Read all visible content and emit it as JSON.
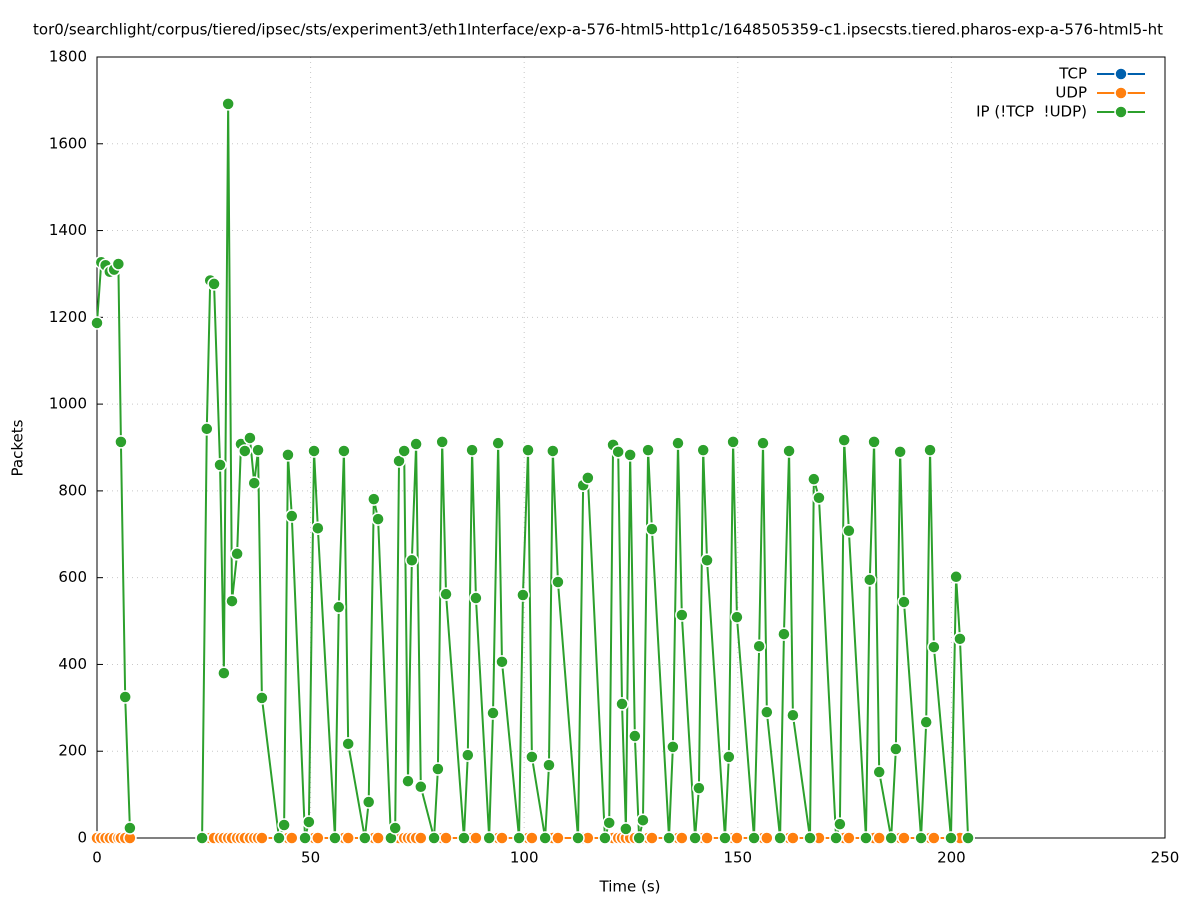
{
  "chart_data": {
    "type": "line",
    "title": "tor0/searchlight/corpus/tiered/ipsec/sts/experiment3/eth1Interface/exp-a-576-html5-http1c/1648505359-c1.ipsecsts.tiered.pharos-exp-a-576-html5-ht",
    "x_label": "Time (s)",
    "y_label": "Packets",
    "xlim": [
      0,
      250
    ],
    "xticks": [
      0,
      50,
      100,
      150,
      200,
      250
    ],
    "ylim": [
      0,
      1800
    ],
    "yticks": [
      0,
      200,
      400,
      600,
      800,
      1000,
      1200,
      1400,
      1600,
      1800
    ],
    "grid": true,
    "legend": "top-right",
    "x": [
      0,
      1,
      2,
      3,
      4,
      5,
      5.6,
      6.6,
      7.7,
      16,
      24.6,
      25.7,
      26.5,
      27.4,
      28.8,
      29.7,
      30.7,
      31.6,
      32.8,
      33.7,
      34.6,
      35.8,
      36.8,
      37.7,
      38.6,
      42.6,
      43.8,
      44.7,
      45.6,
      48.7,
      49.6,
      50.8,
      51.7,
      55.7,
      56.6,
      57.8,
      58.8,
      62.7,
      63.6,
      64.8,
      65.8,
      68.8,
      69.8,
      70.7,
      71.9,
      72.8,
      73.7,
      74.7,
      75.8,
      78.9,
      79.8,
      80.8,
      81.7,
      85.9,
      86.8,
      87.8,
      88.7,
      91.8,
      92.7,
      93.9,
      94.8,
      98.8,
      99.7,
      100.9,
      101.8,
      104.9,
      105.8,
      106.7,
      107.9,
      112.6,
      113.8,
      114.9,
      118.9,
      119.9,
      120.8,
      122.0,
      122.9,
      123.8,
      124.8,
      125.9,
      126.9,
      127.8,
      129.0,
      129.9,
      133.9,
      134.8,
      136.0,
      136.9,
      140.0,
      140.9,
      141.9,
      142.8,
      147.0,
      147.9,
      148.9,
      149.8,
      153.8,
      155.0,
      155.9,
      156.8,
      159.9,
      160.8,
      162.0,
      162.9,
      166.9,
      167.8,
      169.0,
      173.0,
      173.9,
      174.9,
      176.0,
      180.0,
      180.9,
      181.9,
      183.1,
      185.9,
      187.0,
      188.0,
      188.9,
      192.9,
      194.1,
      195.0,
      195.9,
      199.9,
      201.1,
      202.0,
      203.9
    ],
    "series": [
      {
        "name": "TCP",
        "color": "#0060ad",
        "values": [
          0,
          0,
          0,
          0,
          0,
          0,
          0,
          0,
          0,
          null,
          0,
          0,
          0,
          0,
          0,
          0,
          0,
          0,
          0,
          0,
          0,
          0,
          0,
          0,
          0,
          0,
          0,
          0,
          0,
          0,
          0,
          0,
          0,
          0,
          0,
          0,
          0,
          0,
          0,
          0,
          0,
          0,
          0,
          0,
          0,
          0,
          0,
          0,
          0,
          0,
          0,
          0,
          0,
          0,
          0,
          0,
          0,
          0,
          0,
          0,
          0,
          0,
          0,
          0,
          0,
          0,
          0,
          0,
          0,
          0,
          0,
          0,
          0,
          0,
          0,
          0,
          0,
          0,
          0,
          0,
          0,
          0,
          0,
          0,
          0,
          0,
          0,
          0,
          0,
          0,
          0,
          0,
          0,
          0,
          0,
          0,
          0,
          0,
          0,
          0,
          0,
          0,
          0,
          0,
          0,
          0,
          0,
          0,
          0,
          0,
          0,
          0,
          0,
          0,
          0,
          0,
          0,
          0,
          0,
          0,
          0,
          0,
          0,
          0,
          0,
          0,
          0
        ]
      },
      {
        "name": "UDP",
        "color": "#ff7f0e",
        "values": [
          0,
          0,
          0,
          0,
          0,
          0,
          0,
          0,
          0,
          null,
          0,
          0,
          0,
          0,
          0,
          0,
          0,
          0,
          0,
          0,
          0,
          0,
          0,
          0,
          0,
          0,
          0,
          0,
          0,
          0,
          0,
          0,
          0,
          0,
          0,
          0,
          0,
          0,
          0,
          0,
          0,
          0,
          0,
          0,
          0,
          0,
          0,
          0,
          0,
          0,
          0,
          0,
          0,
          0,
          0,
          0,
          0,
          0,
          0,
          0,
          0,
          0,
          0,
          0,
          0,
          0,
          0,
          0,
          0,
          0,
          0,
          0,
          0,
          0,
          0,
          0,
          0,
          0,
          0,
          0,
          0,
          0,
          0,
          0,
          0,
          0,
          0,
          0,
          0,
          0,
          0,
          0,
          0,
          0,
          0,
          0,
          0,
          0,
          0,
          0,
          0,
          0,
          0,
          0,
          0,
          0,
          0,
          0,
          0,
          0,
          0,
          0,
          0,
          0,
          0,
          0,
          0,
          0,
          0,
          0,
          0,
          0,
          0,
          0,
          0,
          0,
          0
        ]
      },
      {
        "name": "IP (!TCP  !UDP)",
        "color": "#2ca02c",
        "values": [
          1187,
          1327,
          1320,
          1305,
          1310,
          1323,
          913,
          325,
          23,
          null,
          0,
          943,
          1285,
          1277,
          860,
          380,
          1692,
          546,
          655,
          908,
          892,
          922,
          818,
          894,
          323,
          0,
          30,
          883,
          742,
          0,
          37,
          892,
          714,
          0,
          532,
          892,
          217,
          0,
          83,
          781,
          735,
          0,
          23,
          869,
          892,
          131,
          640,
          908,
          118,
          0,
          159,
          913,
          562,
          0,
          191,
          894,
          553,
          0,
          288,
          910,
          406,
          0,
          560,
          894,
          187,
          0,
          168,
          892,
          590,
          0,
          813,
          830,
          0,
          35,
          906,
          890,
          309,
          21,
          883,
          235,
          0,
          41,
          894,
          712,
          0,
          210,
          910,
          514,
          0,
          115,
          894,
          640,
          0,
          187,
          913,
          509,
          0,
          442,
          910,
          290,
          0,
          470,
          892,
          283,
          0,
          827,
          784,
          0,
          32,
          917,
          708,
          0,
          595,
          913,
          152,
          0,
          205,
          890,
          544,
          0,
          267,
          894,
          440,
          0,
          602,
          459,
          0
        ]
      }
    ]
  }
}
